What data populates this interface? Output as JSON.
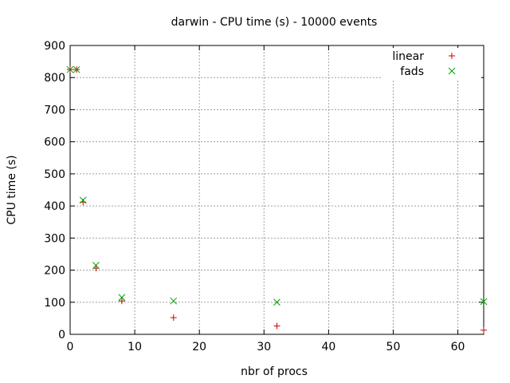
{
  "chart_data": {
    "type": "scatter",
    "title": "darwin - CPU time (s) - 10000 events",
    "xlabel": "nbr of procs",
    "ylabel": "CPU time (s)",
    "xlim": [
      0,
      64
    ],
    "ylim": [
      0,
      900
    ],
    "xticks": [
      0,
      10,
      20,
      30,
      40,
      50,
      60
    ],
    "yticks": [
      0,
      100,
      200,
      300,
      400,
      500,
      600,
      700,
      800,
      900
    ],
    "grid": true,
    "legend_position": "top-right",
    "series": [
      {
        "name": "linear",
        "marker": "plus",
        "color": "#cc0000",
        "points": [
          [
            0,
            825
          ],
          [
            1,
            825
          ],
          [
            2,
            412
          ],
          [
            4,
            206
          ],
          [
            8,
            104
          ],
          [
            16,
            52
          ],
          [
            32,
            26
          ],
          [
            64,
            13
          ]
        ]
      },
      {
        "name": "fads",
        "marker": "cross",
        "color": "#00a000",
        "points": [
          [
            0,
            825
          ],
          [
            1,
            825
          ],
          [
            2,
            418
          ],
          [
            4,
            215
          ],
          [
            8,
            115
          ],
          [
            16,
            104
          ],
          [
            32,
            100
          ],
          [
            64,
            102
          ]
        ]
      }
    ]
  }
}
